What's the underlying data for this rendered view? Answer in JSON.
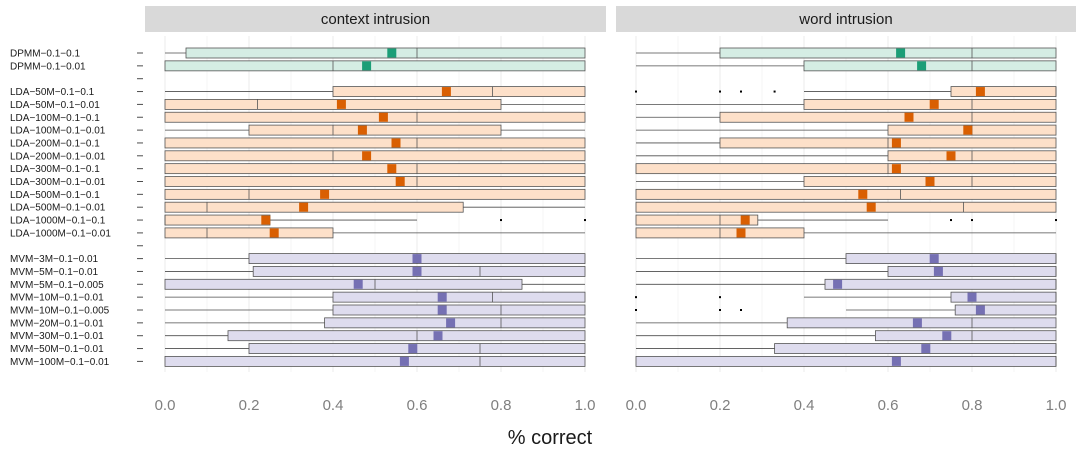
{
  "chart_data": {
    "type": "box",
    "xlabel": "% correct",
    "xlim": [
      0,
      1
    ],
    "xticks": [
      "0.0",
      "0.2",
      "0.4",
      "0.6",
      "0.8",
      "1.0"
    ],
    "panels": [
      "context intrusion",
      "word intrusion"
    ],
    "colors": {
      "DPMM": {
        "fill": "#d5ede4",
        "mean": "#1b9e77"
      },
      "LDA": {
        "fill": "#fde0c9",
        "mean": "#d95f02"
      },
      "MVM": {
        "fill": "#dedcee",
        "mean": "#7570b3"
      }
    },
    "categories": [
      "DPMM−0.1−0.1",
      "DPMM−0.1−0.01",
      "",
      "LDA−50M−0.1−0.1",
      "LDA−50M−0.1−0.01",
      "LDA−100M−0.1−0.1",
      "LDA−100M−0.1−0.01",
      "LDA−200M−0.1−0.1",
      "LDA−200M−0.1−0.01",
      "LDA−300M−0.1−0.1",
      "LDA−300M−0.1−0.01",
      "LDA−500M−0.1−0.1",
      "LDA−500M−0.1−0.01",
      "LDA−1000M−0.1−0.1",
      "LDA−1000M−0.1−0.01",
      "",
      "MVM−3M−0.1−0.01",
      "MVM−5M−0.1−0.01",
      "MVM−5M−0.1−0.005",
      "MVM−10M−0.1−0.01",
      "MVM−10M−0.1−0.005",
      "MVM−20M−0.1−0.01",
      "MVM−30M−0.1−0.01",
      "MVM−50M−0.1−0.01",
      "MVM−100M−0.1−0.01"
    ],
    "series": [
      {
        "name": "context intrusion",
        "boxes": [
          {
            "row": 0,
            "group": "DPMM",
            "min": 0,
            "q1": 0.05,
            "median": 0.6,
            "q3": 1,
            "max": 1,
            "mean": 0.54,
            "outliers": []
          },
          {
            "row": 1,
            "group": "DPMM",
            "min": 0,
            "q1": 0,
            "median": 0.4,
            "q3": 1,
            "max": 1,
            "mean": 0.48,
            "outliers": []
          },
          {
            "row": 3,
            "group": "LDA",
            "min": 0,
            "q1": 0.4,
            "median": 0.78,
            "q3": 1,
            "max": 1,
            "mean": 0.67,
            "outliers": []
          },
          {
            "row": 4,
            "group": "LDA",
            "min": 0,
            "q1": 0,
            "median": 0.22,
            "q3": 0.8,
            "max": 1,
            "mean": 0.42,
            "outliers": []
          },
          {
            "row": 5,
            "group": "LDA",
            "min": 0,
            "q1": 0,
            "median": 0.6,
            "q3": 1,
            "max": 1,
            "mean": 0.52,
            "outliers": []
          },
          {
            "row": 6,
            "group": "LDA",
            "min": 0,
            "q1": 0.2,
            "median": 0.4,
            "q3": 0.8,
            "max": 1,
            "mean": 0.47,
            "outliers": []
          },
          {
            "row": 7,
            "group": "LDA",
            "min": 0,
            "q1": 0,
            "median": 0.6,
            "q3": 1,
            "max": 1,
            "mean": 0.55,
            "outliers": []
          },
          {
            "row": 8,
            "group": "LDA",
            "min": 0,
            "q1": 0,
            "median": 0.4,
            "q3": 1,
            "max": 1,
            "mean": 0.48,
            "outliers": []
          },
          {
            "row": 9,
            "group": "LDA",
            "min": 0,
            "q1": 0,
            "median": 0.6,
            "q3": 1,
            "max": 1,
            "mean": 0.54,
            "outliers": []
          },
          {
            "row": 10,
            "group": "LDA",
            "min": 0,
            "q1": 0,
            "median": 0.6,
            "q3": 1,
            "max": 1,
            "mean": 0.56,
            "outliers": []
          },
          {
            "row": 11,
            "group": "LDA",
            "min": 0,
            "q1": 0,
            "median": 0.2,
            "q3": 1,
            "max": 1,
            "mean": 0.38,
            "outliers": []
          },
          {
            "row": 12,
            "group": "LDA",
            "min": 0,
            "q1": 0,
            "median": 0.1,
            "q3": 0.71,
            "max": 1,
            "mean": 0.33,
            "outliers": []
          },
          {
            "row": 13,
            "group": "LDA",
            "min": 0,
            "q1": 0,
            "median": 0,
            "q3": 0.25,
            "max": 0.6,
            "mean": 0.24,
            "outliers": [
              0.8,
              1
            ]
          },
          {
            "row": 14,
            "group": "LDA",
            "min": 0,
            "q1": 0,
            "median": 0.1,
            "q3": 0.4,
            "max": 1,
            "mean": 0.26,
            "outliers": []
          },
          {
            "row": 16,
            "group": "MVM",
            "min": 0,
            "q1": 0.2,
            "median": 0.6,
            "q3": 1,
            "max": 1,
            "mean": 0.6,
            "outliers": []
          },
          {
            "row": 17,
            "group": "MVM",
            "min": 0,
            "q1": 0.21,
            "median": 0.75,
            "q3": 1,
            "max": 1,
            "mean": 0.6,
            "outliers": []
          },
          {
            "row": 18,
            "group": "MVM",
            "min": 0,
            "q1": 0,
            "median": 0.5,
            "q3": 0.85,
            "max": 1,
            "mean": 0.46,
            "outliers": []
          },
          {
            "row": 19,
            "group": "MVM",
            "min": 0,
            "q1": 0.4,
            "median": 0.78,
            "q3": 1,
            "max": 1,
            "mean": 0.66,
            "outliers": []
          },
          {
            "row": 20,
            "group": "MVM",
            "min": 0,
            "q1": 0.4,
            "median": 0.8,
            "q3": 1,
            "max": 1,
            "mean": 0.66,
            "outliers": []
          },
          {
            "row": 21,
            "group": "MVM",
            "min": 0,
            "q1": 0.38,
            "median": 0.8,
            "q3": 1,
            "max": 1,
            "mean": 0.68,
            "outliers": []
          },
          {
            "row": 22,
            "group": "MVM",
            "min": 0,
            "q1": 0.15,
            "median": 0.6,
            "q3": 1,
            "max": 1,
            "mean": 0.65,
            "outliers": []
          },
          {
            "row": 23,
            "group": "MVM",
            "min": 0,
            "q1": 0.2,
            "median": 0.75,
            "q3": 1,
            "max": 1,
            "mean": 0.59,
            "outliers": []
          },
          {
            "row": 24,
            "group": "MVM",
            "min": 0,
            "q1": 0,
            "median": 0.75,
            "q3": 1,
            "max": 1,
            "mean": 0.57,
            "outliers": []
          }
        ]
      },
      {
        "name": "word intrusion",
        "boxes": [
          {
            "row": 0,
            "group": "DPMM",
            "min": 0,
            "q1": 0.2,
            "median": 0.8,
            "q3": 1,
            "max": 1,
            "mean": 0.63,
            "outliers": []
          },
          {
            "row": 1,
            "group": "DPMM",
            "min": 0,
            "q1": 0.4,
            "median": 0.8,
            "q3": 1,
            "max": 1,
            "mean": 0.68,
            "outliers": []
          },
          {
            "row": 3,
            "group": "LDA",
            "min": 0.4,
            "q1": 0.75,
            "median": 1,
            "q3": 1,
            "max": 1,
            "mean": 0.82,
            "outliers": [
              0,
              0.2,
              0.25,
              0.33
            ]
          },
          {
            "row": 4,
            "group": "LDA",
            "min": 0,
            "q1": 0.4,
            "median": 0.8,
            "q3": 1,
            "max": 1,
            "mean": 0.71,
            "outliers": []
          },
          {
            "row": 5,
            "group": "LDA",
            "min": 0,
            "q1": 0.2,
            "median": 0.8,
            "q3": 1,
            "max": 1,
            "mean": 0.65,
            "outliers": []
          },
          {
            "row": 6,
            "group": "LDA",
            "min": 0,
            "q1": 0.6,
            "median": 0.8,
            "q3": 1,
            "max": 1,
            "mean": 0.79,
            "outliers": []
          },
          {
            "row": 7,
            "group": "LDA",
            "min": 0,
            "q1": 0.2,
            "median": 0.6,
            "q3": 1,
            "max": 1,
            "mean": 0.62,
            "outliers": []
          },
          {
            "row": 8,
            "group": "LDA",
            "min": 0,
            "q1": 0.6,
            "median": 0.8,
            "q3": 1,
            "max": 1,
            "mean": 0.75,
            "outliers": []
          },
          {
            "row": 9,
            "group": "LDA",
            "min": 0,
            "q1": 0,
            "median": 0.6,
            "q3": 1,
            "max": 1,
            "mean": 0.62,
            "outliers": []
          },
          {
            "row": 10,
            "group": "LDA",
            "min": 0,
            "q1": 0.4,
            "median": 0.8,
            "q3": 1,
            "max": 1,
            "mean": 0.7,
            "outliers": []
          },
          {
            "row": 11,
            "group": "LDA",
            "min": 0,
            "q1": 0,
            "median": 0.63,
            "q3": 1,
            "max": 1,
            "mean": 0.54,
            "outliers": []
          },
          {
            "row": 12,
            "group": "LDA",
            "min": 0,
            "q1": 0,
            "median": 0.78,
            "q3": 1,
            "max": 1,
            "mean": 0.56,
            "outliers": []
          },
          {
            "row": 13,
            "group": "LDA",
            "min": 0,
            "q1": 0,
            "median": 0.2,
            "q3": 0.29,
            "max": 0.6,
            "mean": 0.26,
            "outliers": [
              0.75,
              0.8,
              1
            ]
          },
          {
            "row": 14,
            "group": "LDA",
            "min": 0,
            "q1": 0,
            "median": 0.2,
            "q3": 0.4,
            "max": 1,
            "mean": 0.25,
            "outliers": []
          },
          {
            "row": 16,
            "group": "MVM",
            "min": 0,
            "q1": 0.5,
            "median": 1,
            "q3": 1,
            "max": 1,
            "mean": 0.71,
            "outliers": []
          },
          {
            "row": 17,
            "group": "MVM",
            "min": 0,
            "q1": 0.6,
            "median": 1,
            "q3": 1,
            "max": 1,
            "mean": 0.72,
            "outliers": []
          },
          {
            "row": 18,
            "group": "MVM",
            "min": 0,
            "q1": 0.45,
            "median": 1,
            "q3": 1,
            "max": 1,
            "mean": 0.48,
            "outliers": []
          },
          {
            "row": 19,
            "group": "MVM",
            "min": 0.4,
            "q1": 0.75,
            "median": 1,
            "q3": 1,
            "max": 1,
            "mean": 0.8,
            "outliers": [
              0,
              0.2
            ]
          },
          {
            "row": 20,
            "group": "MVM",
            "min": 0.5,
            "q1": 0.76,
            "median": 1,
            "q3": 1,
            "max": 1,
            "mean": 0.82,
            "outliers": [
              0,
              0.2,
              0.25
            ]
          },
          {
            "row": 21,
            "group": "MVM",
            "min": 0,
            "q1": 0.36,
            "median": 0.8,
            "q3": 1,
            "max": 1,
            "mean": 0.67,
            "outliers": []
          },
          {
            "row": 22,
            "group": "MVM",
            "min": 0,
            "q1": 0.57,
            "median": 0.8,
            "q3": 1,
            "max": 1,
            "mean": 0.74,
            "outliers": []
          },
          {
            "row": 23,
            "group": "MVM",
            "min": 0,
            "q1": 0.33,
            "median": 1,
            "q3": 1,
            "max": 1,
            "mean": 0.69,
            "outliers": []
          },
          {
            "row": 24,
            "group": "MVM",
            "min": 0,
            "q1": 0,
            "median": 1,
            "q3": 1,
            "max": 1,
            "mean": 0.62,
            "outliers": []
          }
        ]
      }
    ]
  }
}
